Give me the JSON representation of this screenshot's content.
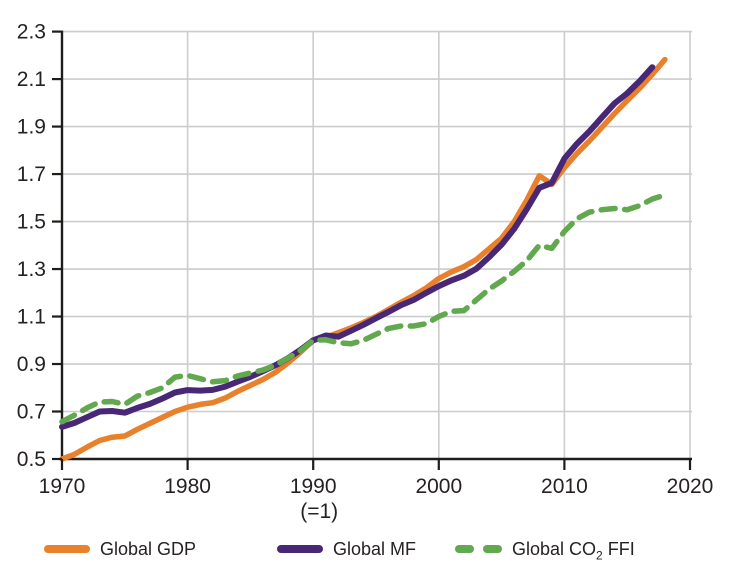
{
  "chart_data": {
    "type": "line",
    "title": "",
    "xlabel": "",
    "ylabel": "",
    "index_note": "(=1)",
    "index_note_year": 1990,
    "xlim": [
      1970,
      2020
    ],
    "ylim": [
      0.5,
      2.3
    ],
    "x_ticks": [
      1970,
      1980,
      1990,
      2000,
      2010,
      2020
    ],
    "y_ticks": [
      0.5,
      0.7,
      0.9,
      1.1,
      1.3,
      1.5,
      1.7,
      1.9,
      2.1,
      2.3
    ],
    "grid": true,
    "legend_position": "bottom",
    "axis_color": "#1d1d1b",
    "grid_color": "#cccccc",
    "tick_label_color": "#262223",
    "series": [
      {
        "name": "Global GDP",
        "color": "#E8802C",
        "style": "solid",
        "year_start": 1970,
        "year_end": 2018,
        "values": [
          0.5,
          0.52,
          0.55,
          0.578,
          0.592,
          0.597,
          0.625,
          0.65,
          0.675,
          0.7,
          0.718,
          0.73,
          0.737,
          0.757,
          0.785,
          0.81,
          0.835,
          0.865,
          0.905,
          0.95,
          1.0,
          1.012,
          1.032,
          1.052,
          1.075,
          1.1,
          1.13,
          1.16,
          1.188,
          1.22,
          1.26,
          1.288,
          1.31,
          1.34,
          1.385,
          1.43,
          1.5,
          1.59,
          1.693,
          1.657,
          1.727,
          1.787,
          1.84,
          1.898,
          1.955,
          2.01,
          2.062,
          2.12,
          2.182
        ]
      },
      {
        "name": "Global MF",
        "color": "#482876",
        "style": "solid",
        "year_start": 1970,
        "year_end": 2017,
        "values": [
          0.635,
          0.652,
          0.676,
          0.7,
          0.702,
          0.695,
          0.715,
          0.732,
          0.755,
          0.78,
          0.79,
          0.788,
          0.791,
          0.805,
          0.826,
          0.846,
          0.87,
          0.895,
          0.925,
          0.96,
          1.0,
          1.02,
          1.015,
          1.04,
          1.065,
          1.093,
          1.12,
          1.148,
          1.17,
          1.2,
          1.228,
          1.252,
          1.272,
          1.302,
          1.35,
          1.403,
          1.47,
          1.552,
          1.642,
          1.663,
          1.765,
          1.828,
          1.88,
          1.94,
          1.998,
          2.04,
          2.092,
          2.15
        ]
      },
      {
        "name": "Global CO2 FFI",
        "color": "#62A84E",
        "style": "dashed",
        "year_start": 1970,
        "year_end": 2018,
        "values": [
          0.657,
          0.685,
          0.715,
          0.74,
          0.742,
          0.73,
          0.765,
          0.78,
          0.8,
          0.845,
          0.852,
          0.838,
          0.825,
          0.83,
          0.85,
          0.862,
          0.875,
          0.895,
          0.925,
          0.957,
          1.0,
          1.002,
          0.99,
          0.985,
          1.0,
          1.025,
          1.05,
          1.06,
          1.06,
          1.07,
          1.1,
          1.122,
          1.125,
          1.17,
          1.215,
          1.25,
          1.29,
          1.335,
          1.4,
          1.387,
          1.458,
          1.512,
          1.54,
          1.55,
          1.555,
          1.55,
          1.567,
          1.595,
          1.612
        ]
      }
    ]
  },
  "legend": {
    "items": [
      {
        "label": "Global GDP"
      },
      {
        "label": "Global MF"
      },
      {
        "label_pre": "Global CO",
        "label_sub": "2",
        "label_post": " FFI"
      }
    ]
  }
}
